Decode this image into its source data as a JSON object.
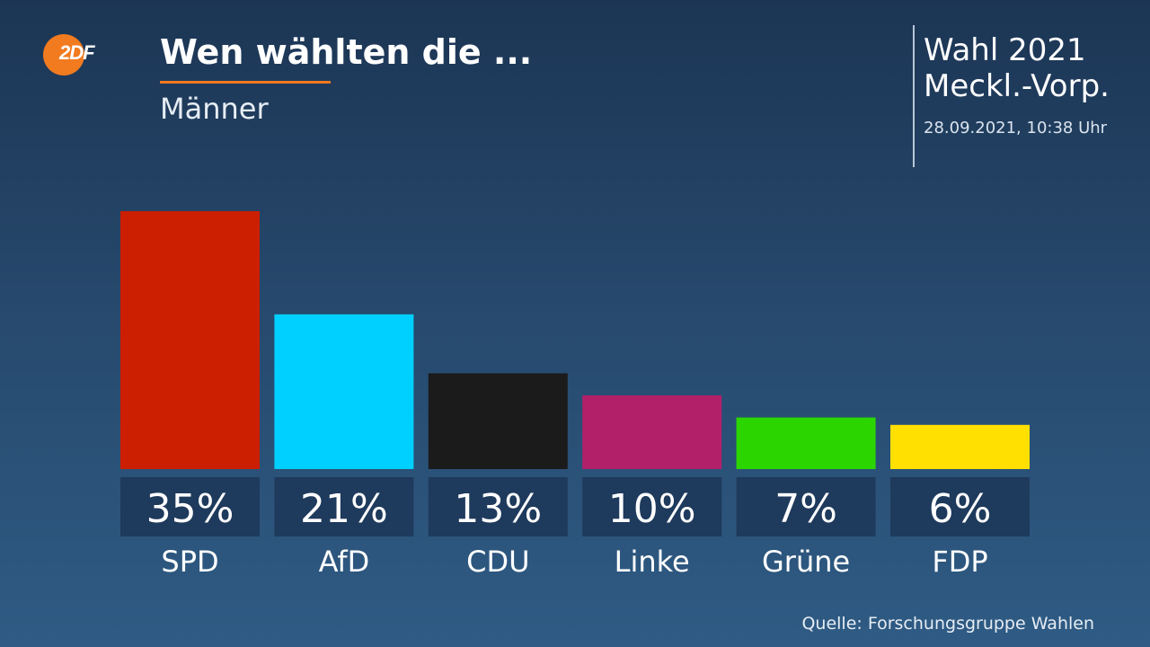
{
  "header": {
    "logo_text": "2DF",
    "title": "Wen wählten die ...",
    "subtitle": "Männer"
  },
  "election": {
    "line1": "Wahl 2021",
    "line2": "Meckl.-Vorp.",
    "timestamp": "28.09.2021, 10:38 Uhr"
  },
  "footer": {
    "source": "Quelle: Forschungsgruppe Wahlen"
  },
  "colors": {
    "accent": "#f27a1f",
    "label_box": "#1e3a5c"
  },
  "chart_data": {
    "type": "bar",
    "categories": [
      "SPD",
      "AfD",
      "CDU",
      "Linke",
      "Grüne",
      "FDP"
    ],
    "values": [
      35,
      21,
      13,
      10,
      7,
      6
    ],
    "value_labels": [
      "35%",
      "21%",
      "13%",
      "10%",
      "7%",
      "6%"
    ],
    "colors": [
      "#cc1e00",
      "#00d0ff",
      "#1b1b1b",
      "#b3206a",
      "#2bd600",
      "#ffe000"
    ],
    "title": "Wen wählten die ...",
    "subtitle": "Männer",
    "unit": "%",
    "ylim": [
      0,
      35
    ],
    "grid": false,
    "legend": "none"
  }
}
